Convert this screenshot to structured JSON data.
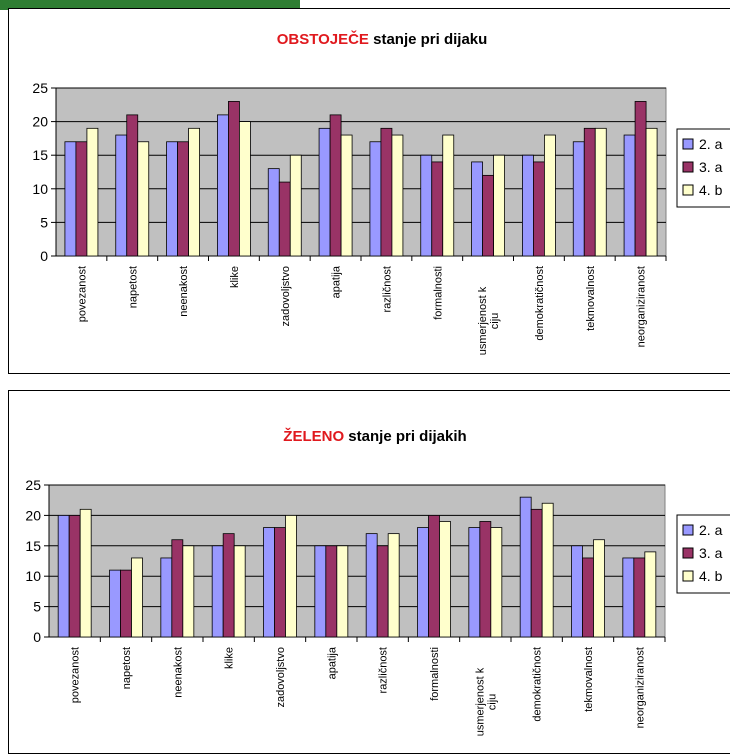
{
  "chart_data": [
    {
      "type": "bar",
      "title_highlight": "OBSTOJEČE",
      "title_rest": " stanje pri dijaku",
      "categories": [
        "povezanost",
        "napetost",
        "neenakost",
        "klike",
        "zadovoljstvo",
        "apatija",
        "različnost",
        "formalnosti",
        "usmerjenost k ciju",
        "demokratičnost",
        "tekmovalnost",
        "neorganiziranost"
      ],
      "series": [
        {
          "name": "2. a",
          "color": "#9999ff",
          "values": [
            17,
            18,
            17,
            21,
            13,
            19,
            17,
            15,
            14,
            15,
            17,
            18
          ]
        },
        {
          "name": "3. a",
          "color": "#993366",
          "values": [
            17,
            21,
            17,
            23,
            11,
            21,
            19,
            14,
            12,
            14,
            19,
            23
          ]
        },
        {
          "name": "4. b",
          "color": "#ffffcc",
          "values": [
            19,
            17,
            19,
            20,
            15,
            18,
            18,
            18,
            15,
            18,
            19,
            19
          ]
        }
      ],
      "ylim": [
        0,
        25
      ],
      "yticks": [
        0,
        5,
        10,
        15,
        20,
        25
      ],
      "legend": "right",
      "plot_bg": "#c0c0c0",
      "grid": true
    },
    {
      "type": "bar",
      "title_highlight": "ŽELENO",
      "title_rest": " stanje pri dijakih",
      "categories": [
        "povezanost",
        "napetost",
        "neenakost",
        "klike",
        "zadovoljstvo",
        "apatija",
        "različnost",
        "formalnosti",
        "usmerjenost k ciju",
        "demokratičnost",
        "tekmovalnost",
        "neorganiziranost"
      ],
      "series": [
        {
          "name": "2. a",
          "color": "#9999ff",
          "values": [
            20,
            11,
            13,
            15,
            18,
            15,
            17,
            18,
            18,
            23,
            15,
            13
          ]
        },
        {
          "name": "3. a",
          "color": "#993366",
          "values": [
            20,
            11,
            16,
            17,
            18,
            15,
            15,
            20,
            19,
            21,
            13,
            13
          ]
        },
        {
          "name": "4. b",
          "color": "#ffffcc",
          "values": [
            21,
            13,
            15,
            15,
            20,
            15,
            17,
            19,
            18,
            22,
            16,
            14
          ]
        }
      ],
      "ylim": [
        0,
        25
      ],
      "yticks": [
        0,
        5,
        10,
        15,
        20,
        25
      ],
      "legend": "right",
      "plot_bg": "#c0c0c0",
      "grid": true
    }
  ],
  "colors": {
    "header_strip": "#2e7d32"
  }
}
